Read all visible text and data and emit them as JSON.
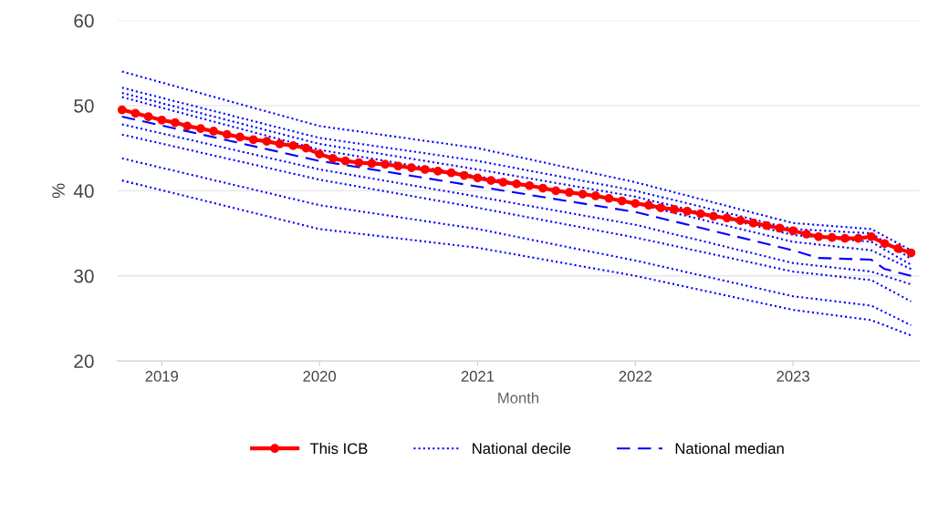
{
  "chart_data": {
    "type": "line",
    "xlabel": "Month",
    "ylabel": "%",
    "ylim": [
      20,
      60
    ],
    "yticks": [
      20,
      30,
      40,
      50,
      60
    ],
    "xlim": [
      "2018-09-20",
      "2023-10-20"
    ],
    "xticks": [
      {
        "value": "2019-01-01",
        "label": "2019"
      },
      {
        "value": "2020-01-01",
        "label": "2020"
      },
      {
        "value": "2021-01-01",
        "label": "2021"
      },
      {
        "value": "2022-01-01",
        "label": "2022"
      },
      {
        "value": "2023-01-01",
        "label": "2023"
      }
    ],
    "grid": "y",
    "legend": "bottom",
    "series": [
      {
        "name": "This ICB",
        "color": "#ff0000",
        "marker": "circle",
        "line_style": "solid",
        "x": [
          "2018-10",
          "2018-11",
          "2018-12",
          "2019-01",
          "2019-02",
          "2019-03",
          "2019-04",
          "2019-05",
          "2019-06",
          "2019-07",
          "2019-08",
          "2019-09",
          "2019-10",
          "2019-11",
          "2019-12",
          "2020-01",
          "2020-02",
          "2020-03",
          "2020-04",
          "2020-05",
          "2020-06",
          "2020-07",
          "2020-08",
          "2020-09",
          "2020-10",
          "2020-11",
          "2020-12",
          "2021-01",
          "2021-02",
          "2021-03",
          "2021-04",
          "2021-05",
          "2021-06",
          "2021-07",
          "2021-08",
          "2021-09",
          "2021-10",
          "2021-11",
          "2021-12",
          "2022-01",
          "2022-02",
          "2022-03",
          "2022-04",
          "2022-05",
          "2022-06",
          "2022-07",
          "2022-08",
          "2022-09",
          "2022-10",
          "2022-11",
          "2022-12",
          "2023-01",
          "2023-02",
          "2023-03",
          "2023-04",
          "2023-05",
          "2023-06",
          "2023-07",
          "2023-08",
          "2023-09",
          "2023-10"
        ],
        "values": [
          49.5,
          49.1,
          48.7,
          48.3,
          48.0,
          47.6,
          47.3,
          47.0,
          46.6,
          46.3,
          46.0,
          45.8,
          45.5,
          45.3,
          45.0,
          44.3,
          43.8,
          43.5,
          43.3,
          43.2,
          43.1,
          42.9,
          42.7,
          42.5,
          42.3,
          42.1,
          41.8,
          41.5,
          41.2,
          41.0,
          40.8,
          40.6,
          40.3,
          40.0,
          39.8,
          39.6,
          39.4,
          39.1,
          38.8,
          38.5,
          38.3,
          38.0,
          37.8,
          37.6,
          37.3,
          37.0,
          36.8,
          36.5,
          36.2,
          35.9,
          35.6,
          35.3,
          34.9,
          34.6,
          34.5,
          34.4,
          34.4,
          34.6,
          33.8,
          33.2,
          32.7
        ]
      },
      {
        "name": "National decile",
        "color": "#0000ff",
        "marker": "none",
        "line_style": "dotted",
        "x": [
          "2018-10",
          "2020-01",
          "2021-01",
          "2022-01",
          "2023-01",
          "2023-07",
          "2023-10"
        ],
        "values": [
          54.0,
          47.6,
          45.0,
          41.0,
          36.2,
          35.5,
          33.0
        ]
      },
      {
        "color": "#0000ff",
        "marker": "none",
        "line_style": "dotted",
        "x": [
          "2018-10",
          "2020-01",
          "2021-01",
          "2022-01",
          "2023-01",
          "2023-07",
          "2023-10"
        ],
        "values": [
          52.1,
          46.2,
          43.5,
          40.0,
          35.5,
          35.0,
          32.0
        ]
      },
      {
        "color": "#0000ff",
        "marker": "none",
        "line_style": "dotted",
        "x": [
          "2018-10",
          "2020-01",
          "2021-01",
          "2022-01",
          "2023-01",
          "2023-07",
          "2023-10"
        ],
        "values": [
          51.5,
          45.5,
          42.5,
          39.3,
          34.8,
          34.0,
          31.3
        ]
      },
      {
        "color": "#0000ff",
        "marker": "none",
        "line_style": "dotted",
        "x": [
          "2018-10",
          "2020-01",
          "2021-01",
          "2022-01",
          "2023-01",
          "2023-07",
          "2023-10"
        ],
        "values": [
          51.0,
          44.8,
          41.7,
          38.5,
          34.0,
          33.0,
          30.8
        ]
      },
      {
        "color": "#0000ff",
        "marker": "none",
        "line_style": "dotted",
        "x": [
          "2018-10",
          "2020-01",
          "2021-01",
          "2022-01",
          "2023-01",
          "2023-07",
          "2023-10"
        ],
        "values": [
          47.8,
          42.5,
          39.3,
          36.0,
          31.5,
          30.5,
          29.0
        ]
      },
      {
        "color": "#0000ff",
        "marker": "none",
        "line_style": "dotted",
        "x": [
          "2018-10",
          "2020-01",
          "2021-01",
          "2022-01",
          "2023-01",
          "2023-07",
          "2023-10"
        ],
        "values": [
          46.6,
          41.3,
          38.0,
          34.5,
          30.5,
          29.5,
          27.0
        ]
      },
      {
        "color": "#0000ff",
        "marker": "none",
        "line_style": "dotted",
        "x": [
          "2018-10",
          "2020-01",
          "2021-01",
          "2022-01",
          "2023-01",
          "2023-07",
          "2023-10"
        ],
        "values": [
          43.8,
          38.3,
          35.5,
          31.8,
          27.6,
          26.5,
          24.2
        ]
      },
      {
        "color": "#0000ff",
        "marker": "none",
        "line_style": "dotted",
        "x": [
          "2018-10",
          "2020-01",
          "2021-01",
          "2022-01",
          "2023-01",
          "2023-07",
          "2023-10"
        ],
        "values": [
          41.2,
          35.5,
          33.3,
          30.0,
          26.0,
          24.8,
          23.0
        ]
      },
      {
        "name": "National median",
        "color": "#0000ff",
        "marker": "none",
        "line_style": "dashed",
        "x": [
          "2018-10",
          "2020-01",
          "2021-01",
          "2022-01",
          "2023-01",
          "2023-03",
          "2023-07",
          "2023-08",
          "2023-10"
        ],
        "values": [
          48.7,
          43.5,
          40.5,
          37.5,
          33.0,
          32.1,
          31.9,
          30.8,
          30.0
        ]
      }
    ]
  }
}
